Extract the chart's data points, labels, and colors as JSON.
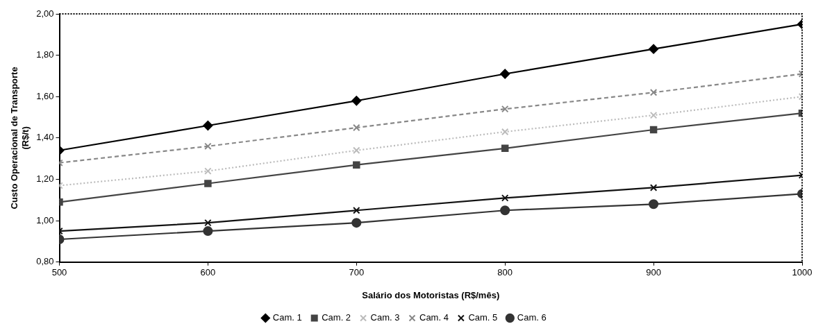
{
  "chart_data": {
    "type": "line",
    "xlabel": "Salário dos Motoristas (R$/mês)",
    "ylabel": "Custo Operacional de Transporte (R$/t)",
    "x": [
      500,
      600,
      700,
      800,
      900,
      1000
    ],
    "xlim": [
      500,
      1000
    ],
    "xticks": [
      500,
      600,
      700,
      800,
      900,
      1000
    ],
    "ylim": [
      0.8,
      2.0
    ],
    "yticks": [
      {
        "value": 0.8,
        "label": "0,80"
      },
      {
        "value": 1.0,
        "label": "1,00"
      },
      {
        "value": 1.2,
        "label": "1,20"
      },
      {
        "value": 1.4,
        "label": "1,40"
      },
      {
        "value": 1.6,
        "label": "1,60"
      },
      {
        "value": 1.8,
        "label": "1,80"
      },
      {
        "value": 2.0,
        "label": "2,00"
      }
    ],
    "grid": false,
    "legend": "bottom",
    "line_style": "solid",
    "series": [
      {
        "name": "Cam. 1",
        "color": "#000000",
        "marker": "diamond",
        "values": [
          1.34,
          1.46,
          1.58,
          1.71,
          1.83,
          1.95
        ]
      },
      {
        "name": "Cam. 2",
        "color": "#444444",
        "marker": "square",
        "values": [
          1.09,
          1.18,
          1.27,
          1.35,
          1.44,
          1.52
        ]
      },
      {
        "name": "Cam. 3",
        "color": "#bbbbbb",
        "marker": "cross",
        "line_style": "dotted",
        "values": [
          1.17,
          1.24,
          1.34,
          1.43,
          1.51,
          1.6
        ]
      },
      {
        "name": "Cam. 4",
        "color": "#888888",
        "marker": "cross",
        "line_style": "dashed",
        "values": [
          1.28,
          1.36,
          1.45,
          1.54,
          1.62,
          1.71
        ]
      },
      {
        "name": "Cam. 5",
        "color": "#111111",
        "marker": "cross",
        "values": [
          0.95,
          0.99,
          1.05,
          1.11,
          1.16,
          1.22
        ]
      },
      {
        "name": "Cam. 6",
        "color": "#333333",
        "marker": "circle",
        "values": [
          0.91,
          0.95,
          0.99,
          1.05,
          1.08,
          1.13
        ]
      }
    ]
  }
}
